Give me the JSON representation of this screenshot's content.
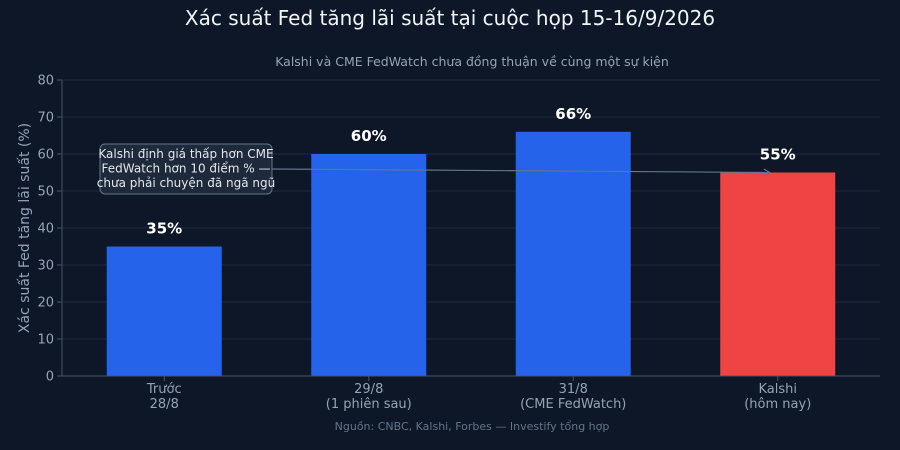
{
  "chart_data": {
    "type": "bar",
    "title": "Xác suất Fed tăng lãi suất tại cuộc họp 15-16/9/2026",
    "subtitle": "Kalshi và CME FedWatch chưa đồng thuận về cùng một sự kiện",
    "source": "Nguồn: CNBC, Kalshi, Forbes — Investify tổng hợp",
    "ylabel": "Xác suất Fed tăng lãi suất (%)",
    "xlabel": "",
    "ylim": [
      0,
      80
    ],
    "yticks": [
      0,
      10,
      20,
      30,
      40,
      50,
      60,
      70,
      80
    ],
    "grid": true,
    "categories": [
      [
        "Trước",
        "28/8"
      ],
      [
        "29/8",
        "(1 phiên sau)"
      ],
      [
        "31/8",
        "(CME FedWatch)"
      ],
      [
        "Kalshi",
        "(hôm nay)"
      ]
    ],
    "values": [
      35,
      60,
      66,
      55
    ],
    "value_labels": [
      "35%",
      "60%",
      "66%",
      "55%"
    ],
    "colors": [
      "#2563eb",
      "#2563eb",
      "#2563eb",
      "#ef4444"
    ],
    "annotation": {
      "lines": [
        "Kalshi định giá thấp hơn CME",
        "FedWatch hơn 10 điểm % —",
        "chưa phải chuyện đã ngã ngũ"
      ],
      "arrow_to_value": 55,
      "arrow_to_category": 3
    }
  }
}
